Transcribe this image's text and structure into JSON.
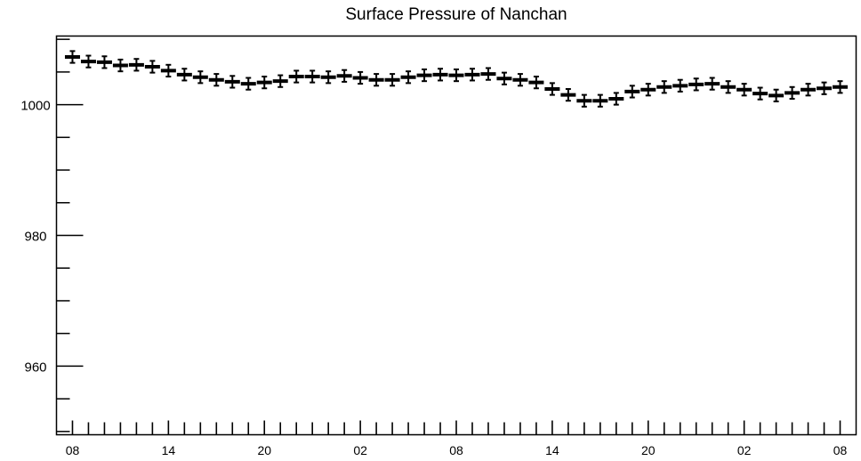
{
  "chart_data": {
    "type": "line",
    "title": "Surface Pressure of Nanchan",
    "xlabel": "",
    "ylabel": "",
    "ylim": [
      949.5,
      1010.5
    ],
    "y_major_ticks": [
      960,
      980,
      1000
    ],
    "y_minor_step": 5,
    "x_tick_labels": [
      "08",
      "14",
      "20",
      "02",
      "08",
      "14",
      "20",
      "02",
      "08"
    ],
    "x_tick_label_positions": [
      0,
      6,
      12,
      18,
      24,
      30,
      36,
      42,
      48
    ],
    "x_range": [
      -1,
      49
    ],
    "grid": false,
    "error_half_width": 0.9,
    "series": [
      {
        "values": [
          1007.3,
          1006.6,
          1006.5,
          1006.0,
          1006.1,
          1005.8,
          1005.2,
          1004.6,
          1004.2,
          1003.8,
          1003.5,
          1003.2,
          1003.4,
          1003.6,
          1004.3,
          1004.3,
          1004.2,
          1004.4,
          1004.1,
          1003.8,
          1003.8,
          1004.2,
          1004.5,
          1004.6,
          1004.5,
          1004.6,
          1004.7,
          1004.0,
          1003.8,
          1003.4,
          1002.4,
          1001.5,
          1000.6,
          1000.6,
          1000.9,
          1002.0,
          1002.3,
          1002.7,
          1002.9,
          1003.1,
          1003.2,
          1002.7,
          1002.3,
          1001.7,
          1001.4,
          1001.8,
          1002.3,
          1002.5,
          1002.7
        ]
      }
    ]
  }
}
